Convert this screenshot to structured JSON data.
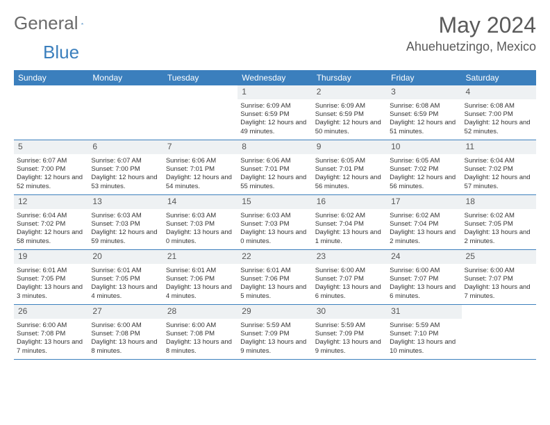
{
  "logo": {
    "word1": "General",
    "word2": "Blue"
  },
  "title": "May 2024",
  "location": "Ahuehuetzingo, Mexico",
  "colors": {
    "header_bg": "#3b7fbd",
    "header_text": "#ffffff",
    "date_bg": "#eef1f3",
    "border": "#3b7fbd",
    "logo_gray": "#6a6a6a",
    "logo_blue": "#3b7fbd"
  },
  "day_names": [
    "Sunday",
    "Monday",
    "Tuesday",
    "Wednesday",
    "Thursday",
    "Friday",
    "Saturday"
  ],
  "weeks": [
    [
      {
        "empty": true
      },
      {
        "empty": true
      },
      {
        "empty": true
      },
      {
        "date": "1",
        "sunrise": "Sunrise: 6:09 AM",
        "sunset": "Sunset: 6:59 PM",
        "daylight": "Daylight: 12 hours and 49 minutes."
      },
      {
        "date": "2",
        "sunrise": "Sunrise: 6:09 AM",
        "sunset": "Sunset: 6:59 PM",
        "daylight": "Daylight: 12 hours and 50 minutes."
      },
      {
        "date": "3",
        "sunrise": "Sunrise: 6:08 AM",
        "sunset": "Sunset: 6:59 PM",
        "daylight": "Daylight: 12 hours and 51 minutes."
      },
      {
        "date": "4",
        "sunrise": "Sunrise: 6:08 AM",
        "sunset": "Sunset: 7:00 PM",
        "daylight": "Daylight: 12 hours and 52 minutes."
      }
    ],
    [
      {
        "date": "5",
        "sunrise": "Sunrise: 6:07 AM",
        "sunset": "Sunset: 7:00 PM",
        "daylight": "Daylight: 12 hours and 52 minutes."
      },
      {
        "date": "6",
        "sunrise": "Sunrise: 6:07 AM",
        "sunset": "Sunset: 7:00 PM",
        "daylight": "Daylight: 12 hours and 53 minutes."
      },
      {
        "date": "7",
        "sunrise": "Sunrise: 6:06 AM",
        "sunset": "Sunset: 7:01 PM",
        "daylight": "Daylight: 12 hours and 54 minutes."
      },
      {
        "date": "8",
        "sunrise": "Sunrise: 6:06 AM",
        "sunset": "Sunset: 7:01 PM",
        "daylight": "Daylight: 12 hours and 55 minutes."
      },
      {
        "date": "9",
        "sunrise": "Sunrise: 6:05 AM",
        "sunset": "Sunset: 7:01 PM",
        "daylight": "Daylight: 12 hours and 56 minutes."
      },
      {
        "date": "10",
        "sunrise": "Sunrise: 6:05 AM",
        "sunset": "Sunset: 7:02 PM",
        "daylight": "Daylight: 12 hours and 56 minutes."
      },
      {
        "date": "11",
        "sunrise": "Sunrise: 6:04 AM",
        "sunset": "Sunset: 7:02 PM",
        "daylight": "Daylight: 12 hours and 57 minutes."
      }
    ],
    [
      {
        "date": "12",
        "sunrise": "Sunrise: 6:04 AM",
        "sunset": "Sunset: 7:02 PM",
        "daylight": "Daylight: 12 hours and 58 minutes."
      },
      {
        "date": "13",
        "sunrise": "Sunrise: 6:03 AM",
        "sunset": "Sunset: 7:03 PM",
        "daylight": "Daylight: 12 hours and 59 minutes."
      },
      {
        "date": "14",
        "sunrise": "Sunrise: 6:03 AM",
        "sunset": "Sunset: 7:03 PM",
        "daylight": "Daylight: 13 hours and 0 minutes."
      },
      {
        "date": "15",
        "sunrise": "Sunrise: 6:03 AM",
        "sunset": "Sunset: 7:03 PM",
        "daylight": "Daylight: 13 hours and 0 minutes."
      },
      {
        "date": "16",
        "sunrise": "Sunrise: 6:02 AM",
        "sunset": "Sunset: 7:04 PM",
        "daylight": "Daylight: 13 hours and 1 minute."
      },
      {
        "date": "17",
        "sunrise": "Sunrise: 6:02 AM",
        "sunset": "Sunset: 7:04 PM",
        "daylight": "Daylight: 13 hours and 2 minutes."
      },
      {
        "date": "18",
        "sunrise": "Sunrise: 6:02 AM",
        "sunset": "Sunset: 7:05 PM",
        "daylight": "Daylight: 13 hours and 2 minutes."
      }
    ],
    [
      {
        "date": "19",
        "sunrise": "Sunrise: 6:01 AM",
        "sunset": "Sunset: 7:05 PM",
        "daylight": "Daylight: 13 hours and 3 minutes."
      },
      {
        "date": "20",
        "sunrise": "Sunrise: 6:01 AM",
        "sunset": "Sunset: 7:05 PM",
        "daylight": "Daylight: 13 hours and 4 minutes."
      },
      {
        "date": "21",
        "sunrise": "Sunrise: 6:01 AM",
        "sunset": "Sunset: 7:06 PM",
        "daylight": "Daylight: 13 hours and 4 minutes."
      },
      {
        "date": "22",
        "sunrise": "Sunrise: 6:01 AM",
        "sunset": "Sunset: 7:06 PM",
        "daylight": "Daylight: 13 hours and 5 minutes."
      },
      {
        "date": "23",
        "sunrise": "Sunrise: 6:00 AM",
        "sunset": "Sunset: 7:07 PM",
        "daylight": "Daylight: 13 hours and 6 minutes."
      },
      {
        "date": "24",
        "sunrise": "Sunrise: 6:00 AM",
        "sunset": "Sunset: 7:07 PM",
        "daylight": "Daylight: 13 hours and 6 minutes."
      },
      {
        "date": "25",
        "sunrise": "Sunrise: 6:00 AM",
        "sunset": "Sunset: 7:07 PM",
        "daylight": "Daylight: 13 hours and 7 minutes."
      }
    ],
    [
      {
        "date": "26",
        "sunrise": "Sunrise: 6:00 AM",
        "sunset": "Sunset: 7:08 PM",
        "daylight": "Daylight: 13 hours and 7 minutes."
      },
      {
        "date": "27",
        "sunrise": "Sunrise: 6:00 AM",
        "sunset": "Sunset: 7:08 PM",
        "daylight": "Daylight: 13 hours and 8 minutes."
      },
      {
        "date": "28",
        "sunrise": "Sunrise: 6:00 AM",
        "sunset": "Sunset: 7:08 PM",
        "daylight": "Daylight: 13 hours and 8 minutes."
      },
      {
        "date": "29",
        "sunrise": "Sunrise: 5:59 AM",
        "sunset": "Sunset: 7:09 PM",
        "daylight": "Daylight: 13 hours and 9 minutes."
      },
      {
        "date": "30",
        "sunrise": "Sunrise: 5:59 AM",
        "sunset": "Sunset: 7:09 PM",
        "daylight": "Daylight: 13 hours and 9 minutes."
      },
      {
        "date": "31",
        "sunrise": "Sunrise: 5:59 AM",
        "sunset": "Sunset: 7:10 PM",
        "daylight": "Daylight: 13 hours and 10 minutes."
      },
      {
        "empty": true
      }
    ]
  ]
}
